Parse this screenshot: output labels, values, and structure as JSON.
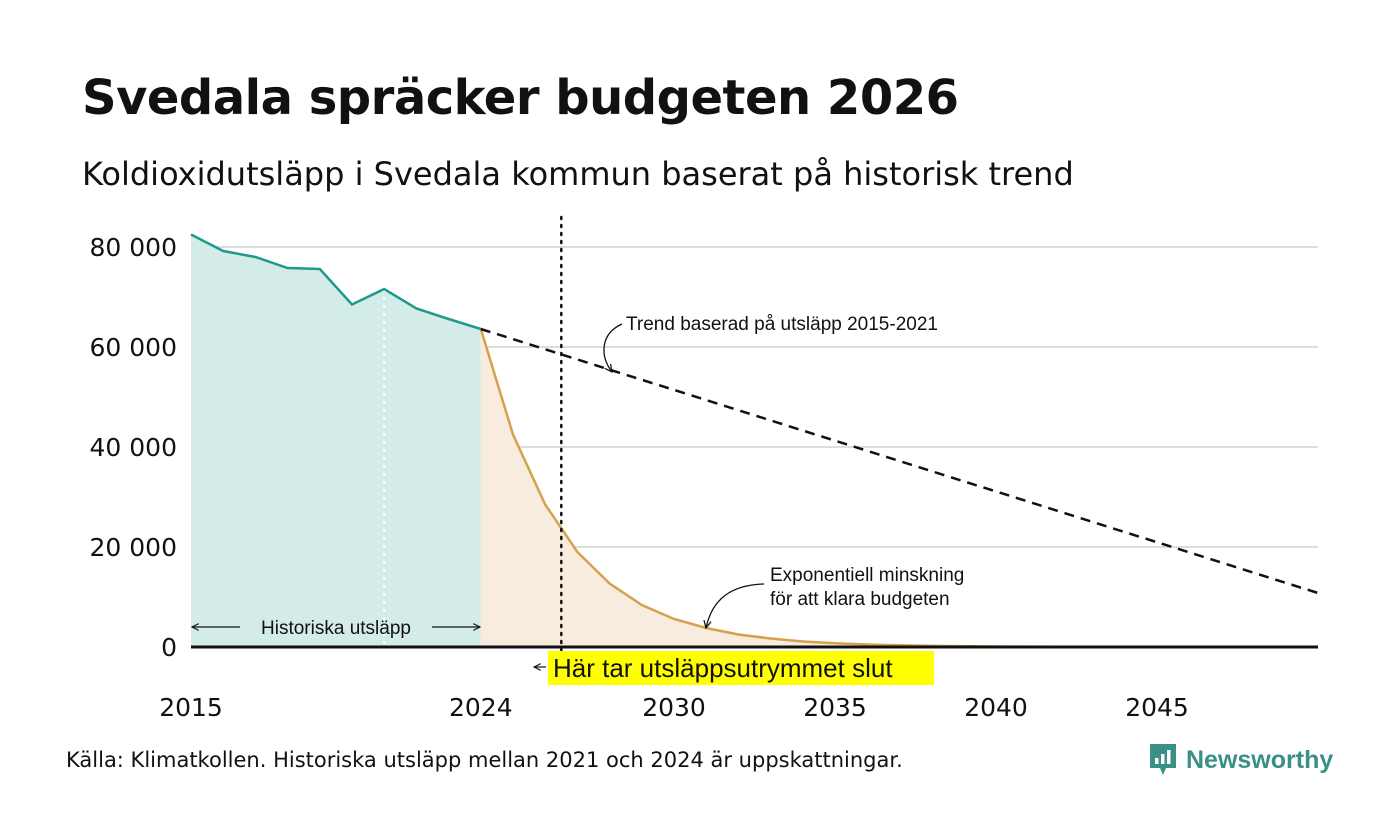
{
  "title": "Svedala spräcker budgeten 2026",
  "subtitle": "Koldioxidutsläpp i Svedala kommun baserat på historisk trend",
  "source": "Källa: Klimatkollen. Historiska utsläpp mellan 2021 och 2024 är uppskattningar.",
  "brand": "Newsworthy",
  "colors": {
    "historical": "#1f9a8d",
    "historical_fill": "#d3ece7",
    "reduction": "#d4a24c",
    "reduction_fill": "#f7ecdd",
    "trend": "#111111",
    "grid": "#dddddd",
    "highlight": "#ffff00",
    "brand": "#3a8f86"
  },
  "chart_data": {
    "type": "line",
    "title": "Svedala spräcker budgeten 2026",
    "ylim": [
      0,
      86000
    ],
    "xlim": [
      2015,
      2050
    ],
    "y_ticks": [
      0,
      20000,
      40000,
      60000,
      80000
    ],
    "y_tick_labels": [
      "0",
      "20 000",
      "40 000",
      "60 000",
      "80 000"
    ],
    "x_ticks": [
      2015,
      2024,
      2030,
      2035,
      2040,
      2045
    ],
    "x_tick_labels": [
      "2015",
      "2024",
      "2030",
      "2035",
      "2040",
      "2045"
    ],
    "series": [
      {
        "name": "Historiska utsläpp",
        "style": "area",
        "x": [
          2015,
          2016,
          2017,
          2018,
          2019,
          2020,
          2021,
          2022,
          2023,
          2024
        ],
        "values": [
          82500,
          79200,
          78000,
          75800,
          75600,
          68500,
          71600,
          67700,
          65600,
          63600
        ]
      },
      {
        "name": "Exponentiell minskning för att klara budgeten",
        "style": "area",
        "x": [
          2024,
          2025,
          2026,
          2027,
          2028,
          2029,
          2030,
          2031,
          2032,
          2033,
          2034,
          2035,
          2036,
          2037,
          2038,
          2040,
          2042,
          2045,
          2050
        ],
        "values": [
          63600,
          42500,
          28500,
          19000,
          12700,
          8400,
          5600,
          3800,
          2500,
          1700,
          1100,
          750,
          500,
          340,
          230,
          100,
          50,
          15,
          0
        ]
      },
      {
        "name": "Trend baserad på utsläpp 2015-2021",
        "style": "dashed",
        "x": [
          2024,
          2050
        ],
        "values": [
          63600,
          10800
        ]
      }
    ],
    "budget_end_year": 2026.5,
    "historical_marker_year": 2021,
    "annotations": {
      "trend": "Trend baserad på utsläpp 2015-2021",
      "reduction_line1": "Exponentiell minskning",
      "reduction_line2": "för att klara budgeten",
      "historical": "Historiska utsläpp",
      "budget_end": "Här tar utsläppsutrymmet slut"
    }
  }
}
